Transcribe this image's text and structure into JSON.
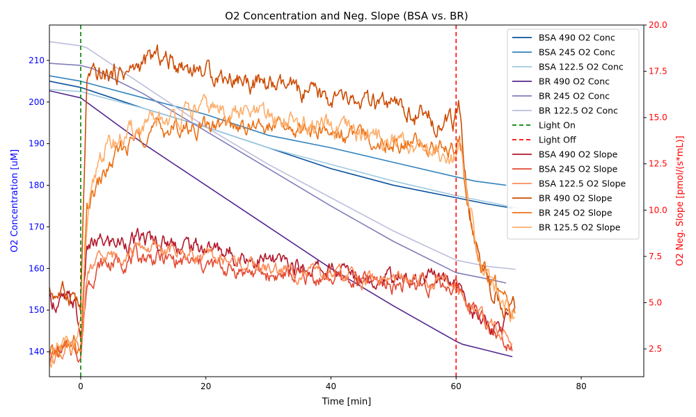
{
  "chart_data": {
    "type": "line",
    "title": "O2 Concentration and Neg. Slope (BSA vs. BR)",
    "xlabel": "Time [min]",
    "ylabel_left": "O2 Concentration [uM]",
    "ylabel_right": "O2 Neg. Slope [pmol/(s*mL)]",
    "xlim": [
      -5,
      90
    ],
    "ylim_left": [
      134,
      218.5
    ],
    "ylim_right": [
      1,
      20
    ],
    "xticks": [
      0,
      20,
      40,
      60,
      80
    ],
    "yticks_left": [
      140,
      150,
      160,
      170,
      180,
      190,
      200,
      210
    ],
    "yticks_right": [
      2.5,
      5.0,
      7.5,
      10.0,
      12.5,
      15.0,
      17.5,
      20.0
    ],
    "ytick_labels_right": [
      "2.5",
      "5.0",
      "7.5",
      "10.0",
      "12.5",
      "15.0",
      "17.5",
      "20.0"
    ],
    "left_axis_color": "#0000ff",
    "right_axis_color": "#ff0000",
    "legend_position": "top-right",
    "vlines": [
      {
        "name": "Light On",
        "x": 0,
        "color": "#008000"
      },
      {
        "name": "Light Off",
        "x": 60,
        "color": "#ff0000"
      }
    ],
    "series": [
      {
        "name": "BSA 490 O2 Conc",
        "axis": "left",
        "color": "#08519c",
        "noise": 0,
        "x": [
          -5,
          0,
          10,
          20,
          30,
          40,
          50,
          60,
          65,
          69
        ],
        "y": [
          205,
          203.5,
          198.5,
          194,
          189,
          184,
          180,
          177,
          175.5,
          174.5
        ]
      },
      {
        "name": "BSA 245 O2 Conc",
        "axis": "left",
        "color": "#3182bd",
        "noise": 0,
        "x": [
          -5,
          0,
          10,
          20,
          30,
          40,
          50,
          60,
          63,
          68
        ],
        "y": [
          206.3,
          205,
          201,
          197,
          192,
          189,
          185.5,
          182,
          181,
          180
        ]
      },
      {
        "name": "BSA 122.5 O2 Conc",
        "axis": "left",
        "color": "#9ecae1",
        "noise": 0,
        "x": [
          -5,
          0,
          10,
          20,
          30,
          40,
          50,
          60,
          65,
          70
        ],
        "y": [
          203,
          202.5,
          198.5,
          194,
          189,
          185,
          181,
          177.5,
          176,
          174.5
        ]
      },
      {
        "name": "BR 490 O2 Conc",
        "axis": "left",
        "color": "#54278f",
        "noise": 0,
        "x": [
          -5,
          0,
          10,
          20,
          30,
          40,
          50,
          60,
          61,
          65,
          69
        ],
        "y": [
          202.7,
          201,
          190,
          180,
          170,
          160,
          151,
          142.5,
          141.8,
          140.3,
          138.8
        ]
      },
      {
        "name": "BR 245 O2 Conc",
        "axis": "left",
        "color": "#807dba",
        "noise": 0,
        "x": [
          -5,
          0,
          2,
          10,
          20,
          30,
          40,
          50,
          60,
          65,
          68
        ],
        "y": [
          209.3,
          208.8,
          208,
          202,
          193,
          184,
          175,
          166.5,
          159,
          157.5,
          156.5
        ]
      },
      {
        "name": "BR 122.5 O2 Conc",
        "axis": "left",
        "color": "#bcbddc",
        "noise": 0,
        "x": [
          -5,
          0,
          1,
          10,
          20,
          30,
          40,
          50,
          60,
          65,
          69.5
        ],
        "y": [
          214.5,
          213.5,
          213,
          204,
          194,
          185,
          177,
          169,
          162,
          160.5,
          159.8
        ]
      },
      {
        "name": "BSA 490 O2 Slope",
        "axis": "right",
        "color": "#b2182b",
        "noise": 0.55,
        "x": [
          -5,
          -1,
          0,
          1,
          3,
          10,
          20,
          30,
          40,
          50,
          59.5,
          61,
          64,
          66,
          69
        ],
        "y": [
          5,
          5,
          3,
          8,
          8.2,
          8.4,
          8,
          7.2,
          6.7,
          6.3,
          6.2,
          5.5,
          4,
          3.6,
          4.2
        ]
      },
      {
        "name": "BSA 245 O2 Slope",
        "axis": "right",
        "color": "#e34a33",
        "noise": 0.5,
        "x": [
          -5,
          -1,
          0,
          1,
          3,
          10,
          20,
          30,
          40,
          50,
          60,
          62,
          66,
          69
        ],
        "y": [
          2.2,
          2.5,
          2.2,
          6,
          7,
          7.5,
          7,
          6.5,
          6.3,
          6,
          5.9,
          5,
          3.5,
          2.8
        ]
      },
      {
        "name": "BSA 122.5 O2 Slope",
        "axis": "right",
        "color": "#fc8d59",
        "noise": 0.45,
        "x": [
          -5,
          -1,
          0,
          1,
          3,
          10,
          20,
          30,
          40,
          50,
          60,
          62,
          66,
          69
        ],
        "y": [
          2.2,
          2.5,
          2.3,
          6.5,
          7.3,
          8,
          7.5,
          6.8,
          6.5,
          6.2,
          6,
          5,
          3.6,
          3
        ]
      },
      {
        "name": "BR 490 O2 Slope",
        "axis": "right",
        "color": "#cc4c02",
        "noise": 0.6,
        "x": [
          -5,
          -1,
          0,
          1,
          3,
          8,
          12,
          20,
          30,
          40,
          50,
          59.5,
          60.5,
          62,
          64,
          66,
          69.5
        ],
        "y": [
          5.5,
          5.5,
          4.5,
          17,
          17.2,
          17.5,
          18.3,
          17.5,
          16.7,
          16,
          15.5,
          14.6,
          15.5,
          10,
          7,
          5.5,
          4.5
        ]
      },
      {
        "name": "BR 245 O2 Slope",
        "axis": "right",
        "color": "#ec7014",
        "noise": 0.55,
        "x": [
          -5,
          -1,
          0,
          1,
          3,
          6,
          10,
          20,
          30,
          40,
          50,
          59.5,
          60.5,
          62,
          64,
          67,
          69.5
        ],
        "y": [
          2,
          2.8,
          2,
          10,
          11.5,
          13,
          14.3,
          14.5,
          14.5,
          14.2,
          13.7,
          13.4,
          14,
          10,
          7,
          5.5,
          4.3
        ]
      },
      {
        "name": "BR 125.5 O2 Slope",
        "axis": "right",
        "color": "#fdae6b",
        "noise": 0.6,
        "x": [
          -5,
          -1,
          0,
          1,
          3,
          6,
          10,
          20,
          30,
          40,
          50,
          59.5,
          60.5,
          62,
          64,
          67,
          69.5
        ],
        "y": [
          1.8,
          3,
          3.5,
          9,
          13,
          13.8,
          14.5,
          15.5,
          15,
          14.3,
          13.8,
          13,
          13.5,
          10,
          7,
          5.5,
          4.2
        ]
      }
    ]
  }
}
